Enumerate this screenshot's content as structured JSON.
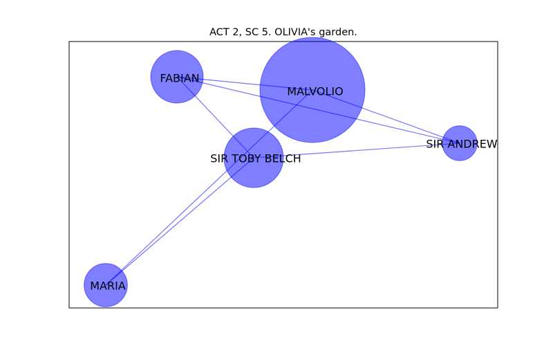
{
  "figure": {
    "title": "ACT 2, SC 5. OLIVIA's garden."
  },
  "graph": {
    "node_color": "#0000ff",
    "node_opacity": 0.5,
    "edge_color": "#0000ff",
    "edge_opacity": 0.55,
    "nodes": [
      {
        "id": "malvolio",
        "label": "MALVOLIO",
        "relative_size": 1.0
      },
      {
        "id": "fabian",
        "label": "FABIAN",
        "relative_size": 0.25
      },
      {
        "id": "sir-toby-belch",
        "label": "SIR TOBY BELCH",
        "relative_size": 0.32
      },
      {
        "id": "sir-andrew",
        "label": "SIR ANDREW",
        "relative_size": 0.11
      },
      {
        "id": "maria",
        "label": "MARIA",
        "relative_size": 0.17
      }
    ],
    "edges": [
      {
        "source": "fabian",
        "target": "malvolio"
      },
      {
        "source": "fabian",
        "target": "sir-andrew"
      },
      {
        "source": "fabian",
        "target": "sir-toby-belch"
      },
      {
        "source": "malvolio",
        "target": "sir-andrew"
      },
      {
        "source": "malvolio",
        "target": "maria"
      },
      {
        "source": "sir-toby-belch",
        "target": "sir-andrew"
      },
      {
        "source": "sir-toby-belch",
        "target": "maria"
      }
    ]
  }
}
